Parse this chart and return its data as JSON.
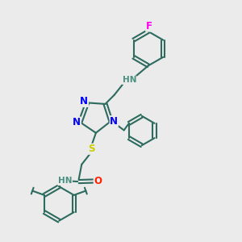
{
  "bg_color": "#ebebeb",
  "bond_color": "#2d6b5e",
  "bond_width": 1.5,
  "atom_colors": {
    "N": "#0000ff",
    "S": "#cccc00",
    "O": "#ff2200",
    "F": "#ff00ee",
    "H": "#4a9080",
    "C": "#2d6b5e"
  },
  "font_size_atom": 8.5,
  "font_size_small": 7.5,
  "xlim": [
    0,
    10
  ],
  "ylim": [
    0,
    10
  ],
  "figsize": [
    3.0,
    3.0
  ],
  "dpi": 100
}
